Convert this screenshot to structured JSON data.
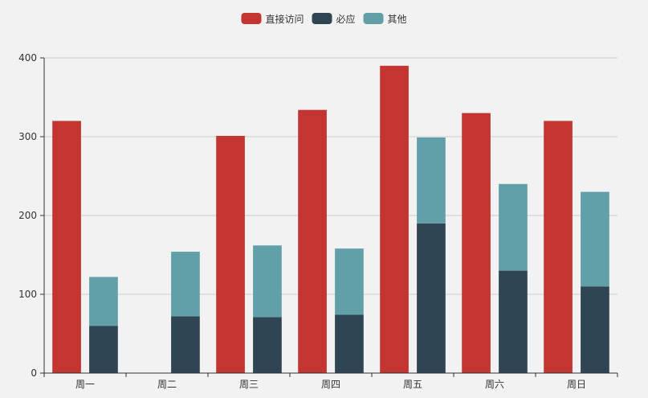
{
  "chart_data": {
    "type": "bar",
    "title": "",
    "xlabel": "",
    "ylabel": "",
    "categories": [
      "周一",
      "周二",
      "周三",
      "周四",
      "周五",
      "周六",
      "周日"
    ],
    "ylim": [
      0,
      400
    ],
    "yticks": [
      0,
      100,
      200,
      300,
      400
    ],
    "grid": true,
    "legend_position": "top-center",
    "series": [
      {
        "name": "直接访问",
        "stack": null,
        "color": "#c23531",
        "values": [
          320,
          0,
          301,
          334,
          390,
          330,
          320
        ]
      },
      {
        "name": "必应",
        "stack": "group",
        "color": "#2f4554",
        "values": [
          60,
          72,
          71,
          74,
          190,
          130,
          110
        ]
      },
      {
        "name": "其他",
        "stack": "group",
        "color": "#61a0a8",
        "values": [
          62,
          82,
          91,
          84,
          109,
          110,
          120
        ]
      }
    ]
  }
}
